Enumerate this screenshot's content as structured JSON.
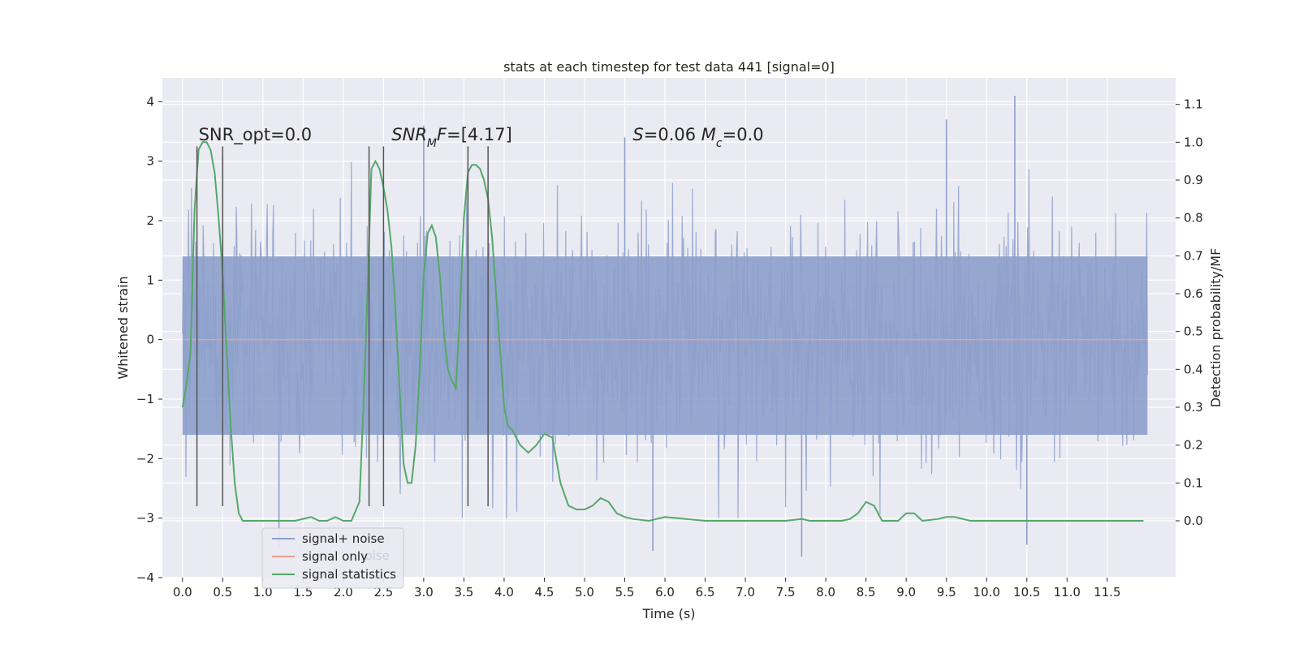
{
  "chart_data": {
    "type": "line",
    "title": "stats at each timestep for test data 441 [signal=0]",
    "xlabel": "Time (s)",
    "ylabel": "Whitened strain",
    "y2label": "Detection probability/MF",
    "xlim": [
      -0.25,
      12.35
    ],
    "ylim": [
      -4.0,
      4.4
    ],
    "y2lim": [
      -0.15,
      1.17
    ],
    "xticks": [
      0.0,
      0.5,
      1.0,
      1.5,
      2.0,
      2.5,
      3.0,
      3.5,
      4.0,
      4.5,
      5.0,
      5.5,
      6.0,
      6.5,
      7.0,
      7.5,
      8.0,
      8.5,
      9.0,
      9.5,
      10.0,
      10.5,
      11.0,
      11.5
    ],
    "xtick_labels": [
      "0.0",
      "0.5",
      "1.0",
      "1.5",
      "2.0",
      "2.5",
      "3.0",
      "3.5",
      "4.0",
      "4.5",
      "5.0",
      "5.5",
      "6.0",
      "6.5",
      "7.0",
      "7.5",
      "8.0",
      "8.5",
      "9.0",
      "9.5",
      "10.0",
      "10.5",
      "11.0",
      "11.5"
    ],
    "yticks": [
      -4,
      -3,
      -2,
      -1,
      0,
      1,
      2,
      3,
      4
    ],
    "ytick_labels": [
      "−4",
      "−3",
      "−2",
      "−1",
      "0",
      "1",
      "2",
      "3",
      "4"
    ],
    "y2ticks": [
      0.0,
      0.1,
      0.2,
      0.3,
      0.4,
      0.5,
      0.6,
      0.7,
      0.8,
      0.9,
      1.0,
      1.1
    ],
    "y2tick_labels": [
      "0.0",
      "0.1",
      "0.2",
      "0.3",
      "0.4",
      "0.5",
      "0.6",
      "0.7",
      "0.8",
      "0.9",
      "1.0",
      "1.1"
    ],
    "grid": true,
    "legend_position": "lower-left",
    "series": [
      {
        "name": "signal+ noise",
        "color": "#8da0cb",
        "kind": "noise band",
        "x_range": [
          0.0,
          12.0
        ],
        "band_values": [
          -1.6,
          1.4
        ],
        "notable_peaks": [
          [
            0.5,
            3.1
          ],
          [
            3.0,
            3.6
          ],
          [
            5.5,
            3.4
          ],
          [
            9.5,
            3.7
          ],
          [
            10.35,
            4.1
          ],
          [
            1.2,
            -3.5
          ],
          [
            5.85,
            -3.55
          ],
          [
            7.7,
            -3.65
          ],
          [
            10.5,
            -3.45
          ]
        ]
      },
      {
        "name": "signal only",
        "color": "#e8a090",
        "kind": "flat line",
        "x": [
          0.0,
          12.0
        ],
        "y": [
          0.0,
          0.0
        ]
      },
      {
        "name": "signal statistics",
        "color": "#55a868",
        "axis": "right",
        "x": [
          0.0,
          0.05,
          0.1,
          0.15,
          0.2,
          0.25,
          0.3,
          0.35,
          0.4,
          0.45,
          0.5,
          0.55,
          0.6,
          0.65,
          0.7,
          0.75,
          0.8,
          0.9,
          1.0,
          1.2,
          1.4,
          1.6,
          1.7,
          1.8,
          1.9,
          2.0,
          2.1,
          2.2,
          2.25,
          2.3,
          2.35,
          2.4,
          2.45,
          2.5,
          2.55,
          2.6,
          2.65,
          2.7,
          2.75,
          2.8,
          2.85,
          2.9,
          2.95,
          3.0,
          3.05,
          3.1,
          3.15,
          3.2,
          3.25,
          3.3,
          3.35,
          3.4,
          3.45,
          3.5,
          3.55,
          3.6,
          3.65,
          3.7,
          3.75,
          3.8,
          3.85,
          3.9,
          3.95,
          4.0,
          4.05,
          4.1,
          4.15,
          4.2,
          4.3,
          4.4,
          4.5,
          4.6,
          4.7,
          4.8,
          4.9,
          5.0,
          5.1,
          5.2,
          5.3,
          5.4,
          5.5,
          5.6,
          5.8,
          6.0,
          6.5,
          7.0,
          7.5,
          7.7,
          7.8,
          8.0,
          8.2,
          8.3,
          8.4,
          8.5,
          8.6,
          8.7,
          8.8,
          8.9,
          9.0,
          9.1,
          9.2,
          9.4,
          9.5,
          9.6,
          9.8,
          10.0,
          10.5,
          11.0,
          11.5,
          11.95
        ],
        "y": [
          0.3,
          0.36,
          0.45,
          0.82,
          0.98,
          1.0,
          1.0,
          0.98,
          0.92,
          0.8,
          0.65,
          0.45,
          0.25,
          0.1,
          0.02,
          0.0,
          0.0,
          0.0,
          0.0,
          0.0,
          0.0,
          0.01,
          0.0,
          0.0,
          0.01,
          0.0,
          0.0,
          0.05,
          0.3,
          0.6,
          0.93,
          0.95,
          0.93,
          0.88,
          0.82,
          0.72,
          0.55,
          0.35,
          0.15,
          0.1,
          0.1,
          0.2,
          0.4,
          0.65,
          0.76,
          0.78,
          0.75,
          0.65,
          0.5,
          0.4,
          0.37,
          0.35,
          0.55,
          0.8,
          0.92,
          0.94,
          0.94,
          0.93,
          0.9,
          0.85,
          0.75,
          0.6,
          0.45,
          0.3,
          0.25,
          0.24,
          0.22,
          0.2,
          0.18,
          0.2,
          0.23,
          0.22,
          0.1,
          0.04,
          0.03,
          0.03,
          0.04,
          0.06,
          0.05,
          0.02,
          0.01,
          0.005,
          0.0,
          0.01,
          0.0,
          0.0,
          0.0,
          0.005,
          0.0,
          0.0,
          0.0,
          0.005,
          0.02,
          0.05,
          0.04,
          0.0,
          0.0,
          0.0,
          0.02,
          0.02,
          0.0,
          0.005,
          0.01,
          0.01,
          0.0,
          0.0,
          0.0,
          0.0,
          0.0,
          0.0
        ]
      }
    ],
    "vertical_markers": [
      {
        "x": 0.18,
        "y_top": 3.25,
        "y_bottom": -2.8
      },
      {
        "x": 0.5,
        "y_top": 3.25,
        "y_bottom": -2.8
      },
      {
        "x": 2.32,
        "y_top": 3.25,
        "y_bottom": -2.8
      },
      {
        "x": 2.5,
        "y_top": 3.25,
        "y_bottom": -2.8
      },
      {
        "x": 3.55,
        "y_top": 3.25,
        "y_bottom": -2.8
      },
      {
        "x": 3.8,
        "y_top": 3.25,
        "y_bottom": -2.8
      }
    ],
    "annotations": [
      {
        "id": "snr-opt",
        "text": "SNR_opt=0.0",
        "x": 0.2,
        "y": 3.35
      },
      {
        "id": "snr-mf",
        "text": "SNR_MF=[4.17]",
        "x": 2.6,
        "y": 3.35
      },
      {
        "id": "s-mc",
        "text": "S=0.06   M_c=0.0",
        "x": 5.6,
        "y": 3.35
      }
    ],
    "legend": {
      "entries": [
        "signal+ noise",
        "signal only",
        "signal statistics"
      ],
      "overlapped_text": "noise"
    }
  }
}
